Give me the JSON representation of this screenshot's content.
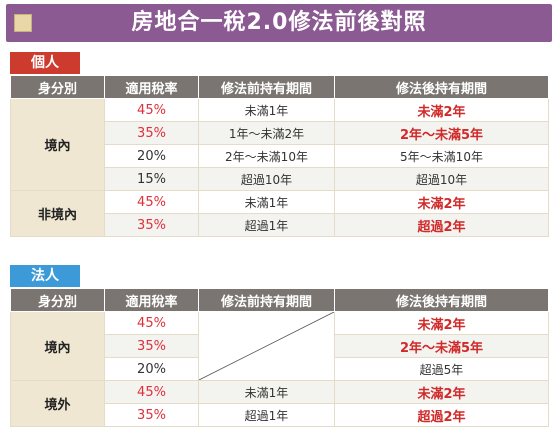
{
  "title": "房地合一稅2.0修法前後對照",
  "colors": {
    "banner": "#8c5a93",
    "personal_tag": "#cc3b2e",
    "corp_tag": "#3d9ad8",
    "header": "#7a7570",
    "highlight": "#d02a2a"
  },
  "headers": [
    "身分別",
    "適用稅率",
    "修法前持有期間",
    "修法後持有期間"
  ],
  "personal": {
    "label": "個人",
    "groups": [
      {
        "identity": "境內",
        "rows": [
          {
            "rate": "45%",
            "before": "未滿1年",
            "after": "未滿2年",
            "rate_red": true,
            "after_red": true
          },
          {
            "rate": "35%",
            "before": "1年～未滿2年",
            "after": "2年～未滿5年",
            "rate_red": true,
            "after_red": true
          },
          {
            "rate": "20%",
            "before": "2年～未滿10年",
            "after": "5年～未滿10年",
            "rate_red": false,
            "after_red": false
          },
          {
            "rate": "15%",
            "before": "超過10年",
            "after": "超過10年",
            "rate_red": false,
            "after_red": false
          }
        ]
      },
      {
        "identity": "非境內",
        "rows": [
          {
            "rate": "45%",
            "before": "未滿1年",
            "after": "未滿2年",
            "rate_red": true,
            "after_red": true
          },
          {
            "rate": "35%",
            "before": "超過1年",
            "after": "超過2年",
            "rate_red": true,
            "after_red": true
          }
        ]
      }
    ]
  },
  "corporate": {
    "label": "法人",
    "groups": [
      {
        "identity": "境內",
        "rows": [
          {
            "rate": "45%",
            "after": "未滿2年",
            "rate_red": true,
            "after_red": true
          },
          {
            "rate": "35%",
            "after": "2年～未滿5年",
            "rate_red": true,
            "after_red": true
          },
          {
            "rate": "20%",
            "after": "超過5年",
            "rate_red": false,
            "after_red": false
          }
        ]
      },
      {
        "identity": "境外",
        "rows": [
          {
            "rate": "45%",
            "before": "未滿1年",
            "after": "未滿2年",
            "rate_red": true,
            "after_red": true
          },
          {
            "rate": "35%",
            "before": "超過1年",
            "after": "超過2年",
            "rate_red": true,
            "after_red": true
          }
        ]
      }
    ]
  }
}
